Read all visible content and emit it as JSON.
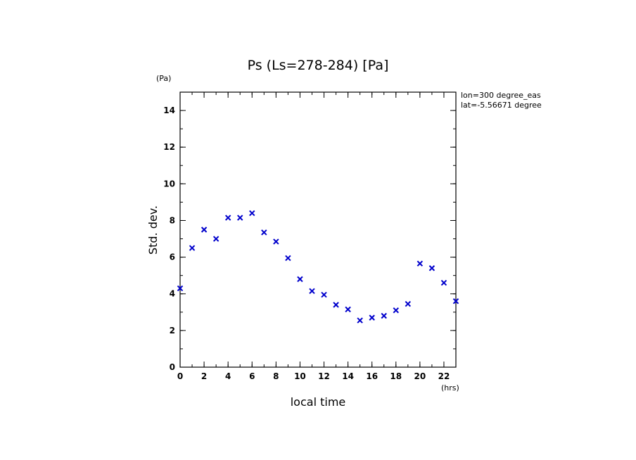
{
  "chart_data": {
    "type": "scatter",
    "title": "Ps (Ls=278-284) [Pa]",
    "xlabel": "local time",
    "ylabel": "Std. dev.",
    "x_unit": "(hrs)",
    "y_unit": "(Pa)",
    "annotations": [
      "lon=300 degree_eas",
      "lat=-5.56671 degree"
    ],
    "xlim": [
      0,
      23
    ],
    "ylim": [
      0,
      15
    ],
    "x_ticks": [
      0,
      2,
      4,
      6,
      8,
      10,
      12,
      14,
      16,
      18,
      20,
      22
    ],
    "y_ticks": [
      0,
      2,
      4,
      6,
      8,
      10,
      12,
      14
    ],
    "marker_color": "#0000cc",
    "marker": "x",
    "grid": false,
    "x": [
      0,
      1,
      2,
      3,
      4,
      5,
      6,
      7,
      8,
      9,
      10,
      11,
      12,
      13,
      14,
      15,
      16,
      17,
      18,
      19,
      20,
      21,
      22,
      23
    ],
    "y": [
      4.3,
      6.5,
      7.5,
      7.0,
      8.15,
      8.15,
      8.4,
      7.35,
      6.85,
      5.95,
      4.8,
      4.15,
      3.95,
      3.4,
      3.15,
      2.55,
      2.7,
      2.8,
      3.1,
      3.45,
      5.65,
      5.4,
      4.6,
      3.6
    ]
  }
}
